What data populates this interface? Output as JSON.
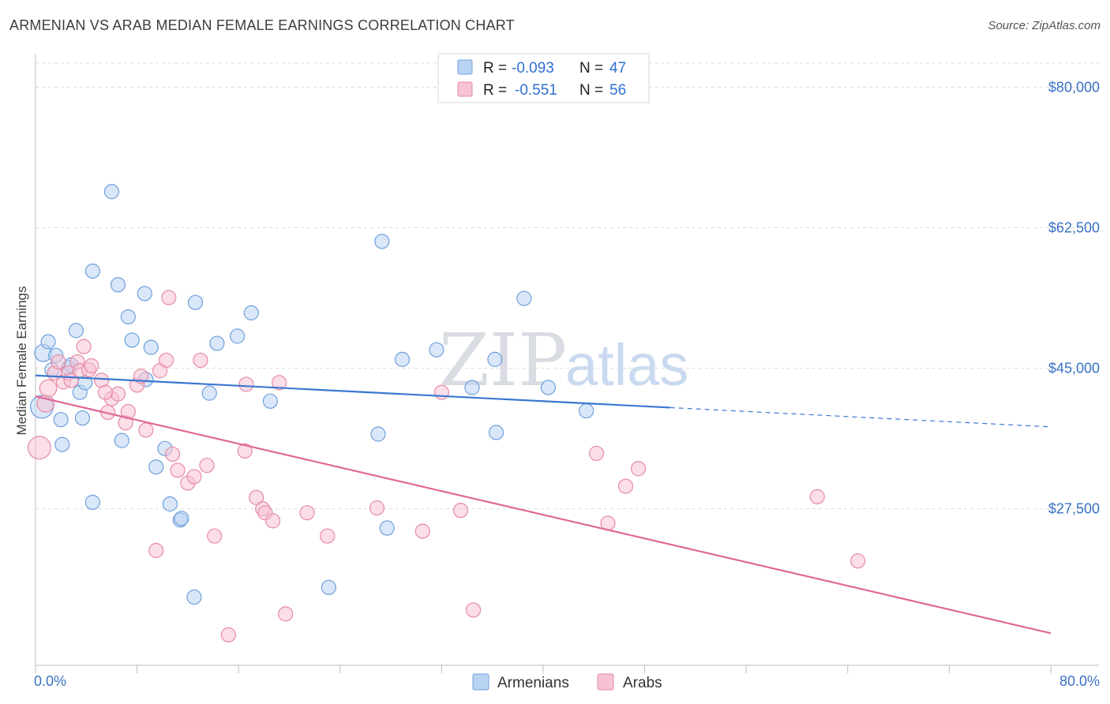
{
  "title": "ARMENIAN VS ARAB MEDIAN FEMALE EARNINGS CORRELATION CHART",
  "source": "Source: ZipAtlas.com",
  "watermark": {
    "zip": "ZIP",
    "atlas": "atlas"
  },
  "legend_top": {
    "rows": [
      {
        "r_label": "R =",
        "r_value": "-0.093",
        "n_label": "N =",
        "n_value": "47"
      },
      {
        "r_label": "R =",
        "r_value": "-0.551",
        "n_label": "N =",
        "n_value": "56"
      }
    ]
  },
  "legend_bottom": [
    "Armenians",
    "Arabs"
  ],
  "colors": {
    "armenian_fill": "#b9d3f2",
    "armenian_stroke": "#6fa0dc",
    "armenian_line": "#3a78d0",
    "arab_fill": "#f7c3d2",
    "arab_stroke": "#e68aa8",
    "arab_line": "#e0689a",
    "grid": "#dcdcdc",
    "axis_text": "#3a72c4"
  },
  "chart_data": {
    "type": "scatter",
    "title": "ARMENIAN VS ARAB MEDIAN FEMALE EARNINGS CORRELATION CHART",
    "xlabel": "",
    "ylabel": "Median Female Earnings",
    "xlim": [
      0,
      80
    ],
    "ylim": [
      8000,
      83000
    ],
    "x_tick_labels": [
      "0.0%",
      "80.0%"
    ],
    "y_ticks": [
      80000,
      62500,
      45000,
      27500
    ],
    "y_tick_labels": [
      "$80,000",
      "$62,500",
      "$45,000",
      "$27,500"
    ],
    "series": [
      {
        "name": "Armenians",
        "r": -0.093,
        "n": 47,
        "trend": {
          "x0": 0,
          "y0": 44100,
          "x1": 50,
          "y1": 40100,
          "x_dash_end": 80,
          "y_dash_end": 37700
        },
        "points": [
          [
            0.5,
            40200,
            16
          ],
          [
            0.6,
            46900,
            12
          ],
          [
            1.0,
            48300,
            10
          ],
          [
            1.3,
            44800,
            10
          ],
          [
            1.6,
            46600,
            10
          ],
          [
            2.0,
            38600,
            10
          ],
          [
            2.1,
            35500,
            10
          ],
          [
            2.6,
            45100,
            10
          ],
          [
            2.8,
            45400,
            10
          ],
          [
            3.2,
            49700,
            10
          ],
          [
            3.5,
            42000,
            10
          ],
          [
            3.7,
            38800,
            10
          ],
          [
            3.9,
            43200,
            10
          ],
          [
            4.5,
            57100,
            10
          ],
          [
            6.0,
            67000,
            10
          ],
          [
            6.5,
            55400,
            10
          ],
          [
            7.3,
            51400,
            10
          ],
          [
            7.6,
            48500,
            10
          ],
          [
            8.6,
            54300,
            10
          ],
          [
            8.7,
            43600,
            10
          ],
          [
            9.1,
            47600,
            10
          ],
          [
            9.5,
            32700,
            10
          ],
          [
            10.2,
            35000,
            10
          ],
          [
            10.6,
            28100,
            10
          ],
          [
            11.4,
            26100,
            10
          ],
          [
            12.6,
            53200,
            10
          ],
          [
            13.7,
            41900,
            10
          ],
          [
            14.3,
            48100,
            10
          ],
          [
            15.9,
            49000,
            10
          ],
          [
            17.0,
            51900,
            10
          ],
          [
            18.5,
            40900,
            10
          ],
          [
            23.1,
            17700,
            10
          ],
          [
            27.0,
            36800,
            10
          ],
          [
            27.3,
            60800,
            10
          ],
          [
            27.7,
            25100,
            10
          ],
          [
            28.9,
            46100,
            10
          ],
          [
            31.6,
            47300,
            10
          ],
          [
            34.4,
            42600,
            10
          ],
          [
            36.2,
            46100,
            10
          ],
          [
            36.3,
            37000,
            10
          ],
          [
            38.5,
            53700,
            10
          ],
          [
            40.4,
            42600,
            10
          ],
          [
            43.4,
            39700,
            10
          ],
          [
            11.5,
            26300,
            10
          ],
          [
            12.5,
            16500,
            10
          ],
          [
            4.5,
            28300,
            10
          ],
          [
            6.8,
            36000,
            10
          ]
        ]
      },
      {
        "name": "Arabs",
        "r": -0.551,
        "n": 56,
        "trend": {
          "x0": 0,
          "y0": 41500,
          "x1": 80,
          "y1": 12000
        },
        "points": [
          [
            0.3,
            35100,
            16
          ],
          [
            0.8,
            40600,
            12
          ],
          [
            1.0,
            42500,
            12
          ],
          [
            1.5,
            44400,
            10
          ],
          [
            1.8,
            45800,
            10
          ],
          [
            2.2,
            43300,
            10
          ],
          [
            2.6,
            44400,
            10
          ],
          [
            2.8,
            43500,
            10
          ],
          [
            3.3,
            45800,
            10
          ],
          [
            3.5,
            44700,
            10
          ],
          [
            3.8,
            47700,
            10
          ],
          [
            4.2,
            44800,
            10
          ],
          [
            4.4,
            45300,
            10
          ],
          [
            5.2,
            43500,
            10
          ],
          [
            5.7,
            39500,
            10
          ],
          [
            6.0,
            41200,
            10
          ],
          [
            6.5,
            41800,
            10
          ],
          [
            7.1,
            38200,
            10
          ],
          [
            7.3,
            39600,
            10
          ],
          [
            8.0,
            42900,
            10
          ],
          [
            8.3,
            44000,
            10
          ],
          [
            8.7,
            37300,
            10
          ],
          [
            9.5,
            22300,
            10
          ],
          [
            9.8,
            44700,
            10
          ],
          [
            10.3,
            46000,
            10
          ],
          [
            10.5,
            53800,
            10
          ],
          [
            10.8,
            34300,
            10
          ],
          [
            11.2,
            32300,
            10
          ],
          [
            12.0,
            30700,
            10
          ],
          [
            12.5,
            31500,
            10
          ],
          [
            13.0,
            46000,
            10
          ],
          [
            13.5,
            32900,
            10
          ],
          [
            14.1,
            24100,
            10
          ],
          [
            15.2,
            11800,
            10
          ],
          [
            16.5,
            34700,
            10
          ],
          [
            16.6,
            43000,
            10
          ],
          [
            17.4,
            28900,
            10
          ],
          [
            17.9,
            27500,
            10
          ],
          [
            18.1,
            27000,
            10
          ],
          [
            18.7,
            26000,
            10
          ],
          [
            19.2,
            43200,
            10
          ],
          [
            19.7,
            14400,
            10
          ],
          [
            21.4,
            27000,
            10
          ],
          [
            23.0,
            24100,
            10
          ],
          [
            26.9,
            27600,
            10
          ],
          [
            30.5,
            24700,
            10
          ],
          [
            32.0,
            42000,
            10
          ],
          [
            33.5,
            27300,
            10
          ],
          [
            34.5,
            14900,
            10
          ],
          [
            44.2,
            34400,
            10
          ],
          [
            45.1,
            25700,
            10
          ],
          [
            46.5,
            30300,
            10
          ],
          [
            47.5,
            32500,
            10
          ],
          [
            61.6,
            29000,
            10
          ],
          [
            64.8,
            21000,
            10
          ],
          [
            5.5,
            42000,
            10
          ]
        ]
      }
    ]
  }
}
